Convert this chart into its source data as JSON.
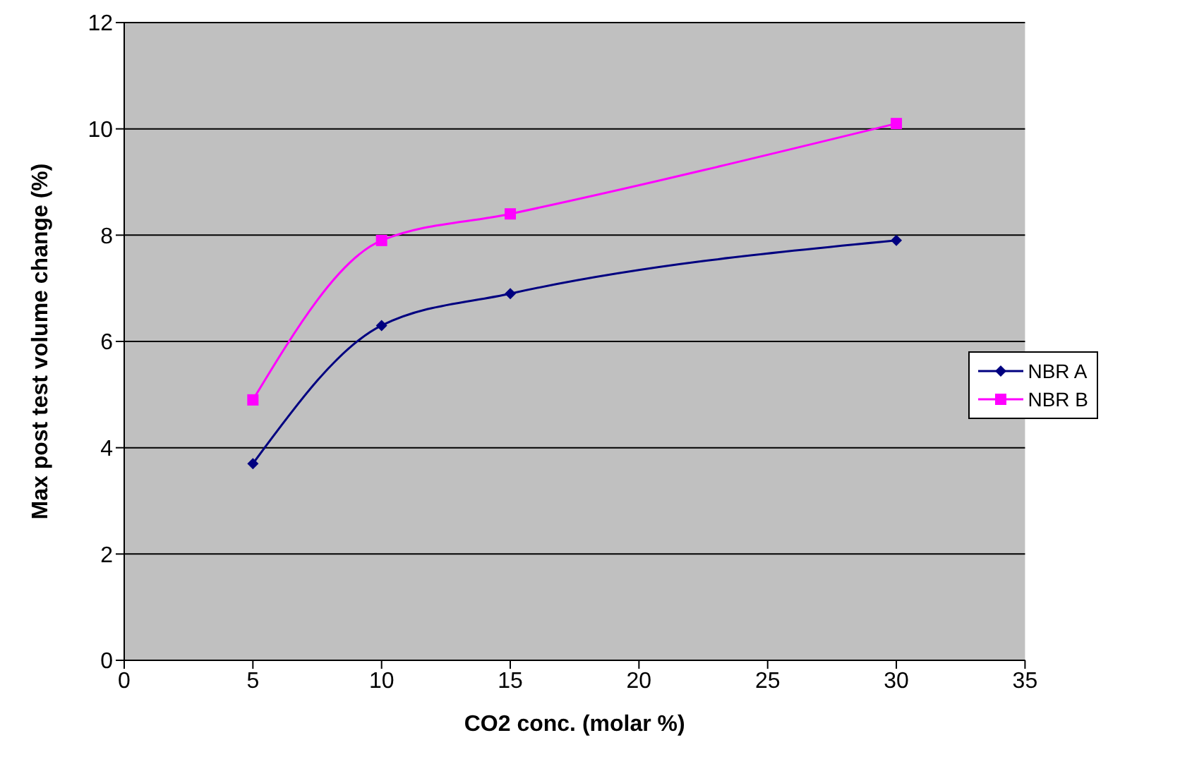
{
  "chart_data": {
    "type": "line",
    "xlabel": "CO2 conc. (molar %)",
    "ylabel": "Max post test volume change (%)",
    "x": [
      5,
      10,
      15,
      30
    ],
    "series": [
      {
        "name": "NBR A",
        "color": "#000080",
        "marker": "diamond",
        "values": [
          3.7,
          6.3,
          6.9,
          7.9
        ]
      },
      {
        "name": "NBR B",
        "color": "#ff00ff",
        "marker": "square",
        "values": [
          4.9,
          7.9,
          8.4,
          10.1
        ]
      }
    ],
    "xlim": [
      0,
      35
    ],
    "xticks": [
      0,
      5,
      10,
      15,
      20,
      25,
      30,
      35
    ],
    "ylim": [
      0,
      12
    ],
    "yticks": [
      0,
      2,
      4,
      6,
      8,
      10,
      12
    ],
    "grid": "y",
    "legend": "right",
    "line_style": "solid"
  }
}
